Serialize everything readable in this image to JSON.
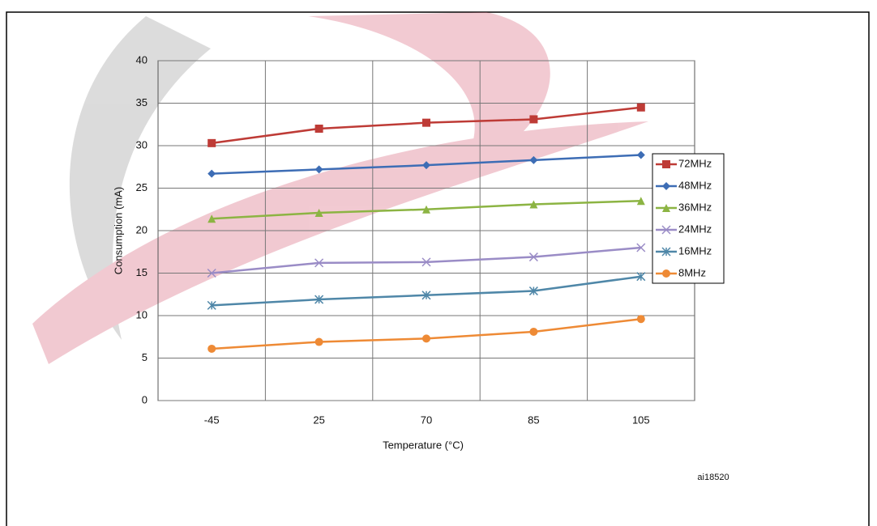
{
  "chart_data": {
    "type": "line",
    "x_label": "Temperature (°C)",
    "y_label": "Consumption (mA)",
    "annotation": "ai18520",
    "categories": [
      "-45",
      "25",
      "70",
      "85",
      "105"
    ],
    "ylim": [
      0,
      40
    ],
    "yticks": [
      0,
      5,
      10,
      15,
      20,
      25,
      30,
      35,
      40
    ],
    "grid": true,
    "legend": "right",
    "series": [
      {
        "name": "72MHz",
        "color": "#be3b36",
        "marker": "square",
        "values": [
          30.3,
          32.0,
          32.7,
          33.1,
          34.5
        ]
      },
      {
        "name": "48MHz",
        "color": "#3d6db5",
        "marker": "diamond",
        "values": [
          26.7,
          27.2,
          27.7,
          28.3,
          28.9
        ]
      },
      {
        "name": "36MHz",
        "color": "#8cb443",
        "marker": "triangle",
        "values": [
          21.4,
          22.1,
          22.5,
          23.1,
          23.5
        ]
      },
      {
        "name": "24MHz",
        "color": "#9a8cc6",
        "marker": "x",
        "values": [
          15.0,
          16.2,
          16.3,
          16.9,
          18.0
        ]
      },
      {
        "name": "16MHz",
        "color": "#4f87a8",
        "marker": "star",
        "values": [
          11.2,
          11.9,
          12.4,
          12.9,
          14.6
        ]
      },
      {
        "name": "8MHz",
        "color": "#ee8a35",
        "marker": "circle",
        "values": [
          6.1,
          6.9,
          7.3,
          8.1,
          9.6
        ]
      }
    ]
  }
}
